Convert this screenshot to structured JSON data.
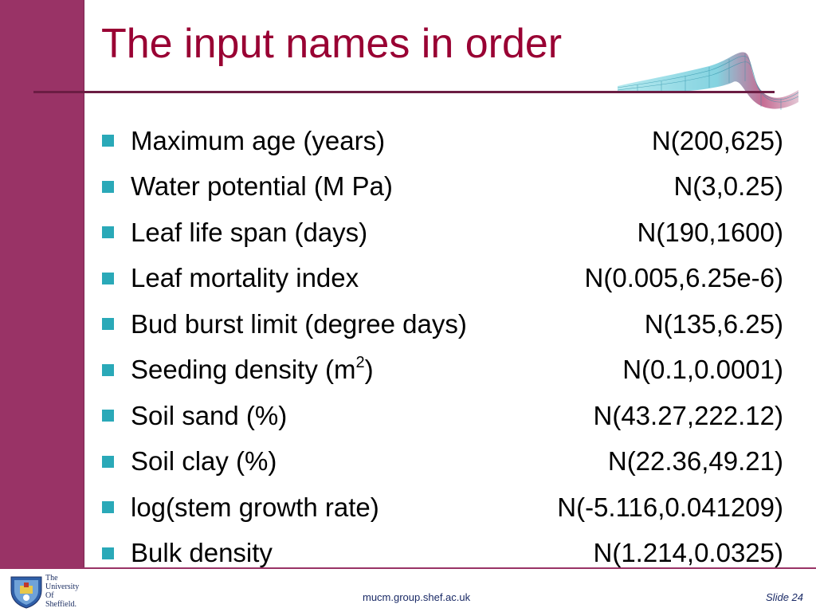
{
  "slide": {
    "title": "The input names in order",
    "footer_url": "mucm.group.shef.ac.uk",
    "slide_number": "Slide 24",
    "logo_lines": [
      "The",
      "University",
      "Of",
      "Sheffield."
    ]
  },
  "items": [
    {
      "label": "Maximum age (years)",
      "dist": "N(200,625)"
    },
    {
      "label": "Water potential (M Pa)",
      "dist": "N(3,0.25)"
    },
    {
      "label": "Leaf life span (days)",
      "dist": "N(190,1600)"
    },
    {
      "label": "Leaf mortality index",
      "dist": "N(0.005,6.25e-6)"
    },
    {
      "label": "Bud burst limit (degree days)",
      "dist": "N(135,6.25)"
    },
    {
      "label": "Seeding density (m",
      "sup": "2",
      "label_suffix": ")",
      "dist": "N(0.1,0.0001)"
    },
    {
      "label": "Soil sand (%)",
      "dist": "N(43.27,222.12)"
    },
    {
      "label": "Soil clay (%)",
      "dist": "N(22.36,49.21)"
    },
    {
      "label": "log(stem growth rate)",
      "dist": "N(-5.116,0.041209)"
    },
    {
      "label": "Bulk density",
      "dist": "N(1.214,0.0325)"
    }
  ],
  "colors": {
    "sidebar": "#993366",
    "title": "#990033",
    "bullet": "#2aa9b8",
    "footer_text": "#1a2a66"
  },
  "icons": {
    "decoration": "wave-mesh-graphic",
    "logo": "university-shield-icon"
  }
}
